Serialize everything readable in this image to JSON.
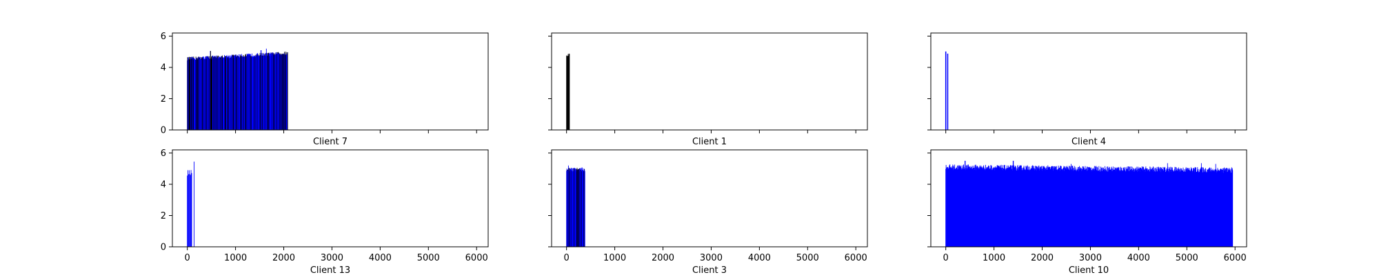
{
  "chart_data": [
    {
      "type": "bar",
      "xlabel": "Client 7",
      "xlim": [
        -310,
        6240
      ],
      "ylim": [
        0,
        6.2
      ],
      "x_ticks": [
        0,
        1000,
        2000,
        3000,
        4000,
        5000,
        6000
      ],
      "y_ticks": [
        0,
        2,
        4,
        6
      ],
      "x_tick_labels_visible": false,
      "y_tick_labels_visible": true,
      "grid": false,
      "bar_color": "#0000ff",
      "dark_color": "#000000",
      "segments": [
        {
          "x_start": 0,
          "x_end": 2080,
          "count": 350,
          "base": 4.55,
          "drift": 0.35,
          "amp": 0.12,
          "spikes": [
            [
              480,
              5.05
            ],
            [
              1530,
              5.1
            ],
            [
              1640,
              5.2
            ]
          ],
          "color_mode": "mixed"
        }
      ]
    },
    {
      "type": "bar",
      "xlabel": "Client 1",
      "xlim": [
        -310,
        6240
      ],
      "ylim": [
        0,
        6.2
      ],
      "x_ticks": [
        0,
        1000,
        2000,
        3000,
        4000,
        5000,
        6000
      ],
      "y_ticks": [
        0,
        2,
        4,
        6
      ],
      "x_tick_labels_visible": false,
      "y_tick_labels_visible": false,
      "grid": false,
      "bar_color": "#0000ff",
      "dark_color": "#000000",
      "segments": [
        {
          "x_start": 0,
          "x_end": 60,
          "count": 8,
          "base": 4.75,
          "drift": 0.1,
          "amp": 0.08,
          "spikes": [],
          "color_mode": "dark"
        }
      ]
    },
    {
      "type": "bar",
      "xlabel": "Client 4",
      "xlim": [
        -310,
        6240
      ],
      "ylim": [
        0,
        6.2
      ],
      "x_ticks": [
        0,
        1000,
        2000,
        3000,
        4000,
        5000,
        6000
      ],
      "y_ticks": [
        0,
        2,
        4,
        6
      ],
      "x_tick_labels_visible": false,
      "y_tick_labels_visible": false,
      "grid": false,
      "bar_color": "#0000ff",
      "dark_color": "#000000",
      "segments": [
        {
          "x_start": 0,
          "x_end": 40,
          "count": 2,
          "base": 5.0,
          "drift": -0.15,
          "amp": 0.05,
          "spikes": [],
          "color_mode": "blue"
        }
      ]
    },
    {
      "type": "bar",
      "xlabel": "Client 13",
      "xlim": [
        -310,
        6240
      ],
      "ylim": [
        0,
        6.2
      ],
      "x_ticks": [
        0,
        1000,
        2000,
        3000,
        4000,
        5000,
        6000
      ],
      "y_ticks": [
        0,
        2,
        4,
        6
      ],
      "x_tick_labels_visible": true,
      "y_tick_labels_visible": true,
      "grid": false,
      "bar_color": "#0000ff",
      "dark_color": "#000000",
      "segments": [
        {
          "x_start": 0,
          "x_end": 90,
          "count": 8,
          "base": 4.7,
          "drift": 0.1,
          "amp": 0.25,
          "spikes": [],
          "color_mode": "blue"
        },
        {
          "x_start": 140,
          "x_end": 150,
          "count": 1,
          "base": 5.45,
          "drift": 0,
          "amp": 0,
          "spikes": [],
          "color_mode": "blue"
        }
      ]
    },
    {
      "type": "bar",
      "xlabel": "Client 3",
      "xlim": [
        -310,
        6240
      ],
      "ylim": [
        0,
        6.2
      ],
      "x_ticks": [
        0,
        1000,
        2000,
        3000,
        4000,
        5000,
        6000
      ],
      "y_ticks": [
        0,
        2,
        4,
        6
      ],
      "x_tick_labels_visible": true,
      "y_tick_labels_visible": false,
      "grid": false,
      "bar_color": "#0000ff",
      "dark_color": "#000000",
      "segments": [
        {
          "x_start": 0,
          "x_end": 380,
          "count": 60,
          "base": 4.95,
          "drift": 0.0,
          "amp": 0.12,
          "spikes": [
            [
              40,
              5.2
            ]
          ],
          "color_mode": "mixed"
        }
      ]
    },
    {
      "type": "bar",
      "xlabel": "Client 10",
      "xlim": [
        -310,
        6240
      ],
      "ylim": [
        0,
        6.2
      ],
      "x_ticks": [
        0,
        1000,
        2000,
        3000,
        4000,
        5000,
        6000
      ],
      "y_ticks": [
        0,
        2,
        4,
        6
      ],
      "x_tick_labels_visible": true,
      "y_tick_labels_visible": false,
      "grid": false,
      "bar_color": "#0000ff",
      "dark_color": "#000000",
      "segments": [
        {
          "x_start": 0,
          "x_end": 5950,
          "count": 900,
          "base": 5.1,
          "drift": -0.2,
          "amp": 0.18,
          "spikes": [
            [
              400,
              5.5
            ],
            [
              1400,
              5.5
            ],
            [
              2600,
              5.3
            ],
            [
              4600,
              5.35
            ],
            [
              5300,
              5.35
            ],
            [
              5600,
              5.3
            ]
          ],
          "color_mode": "blue"
        }
      ]
    }
  ]
}
